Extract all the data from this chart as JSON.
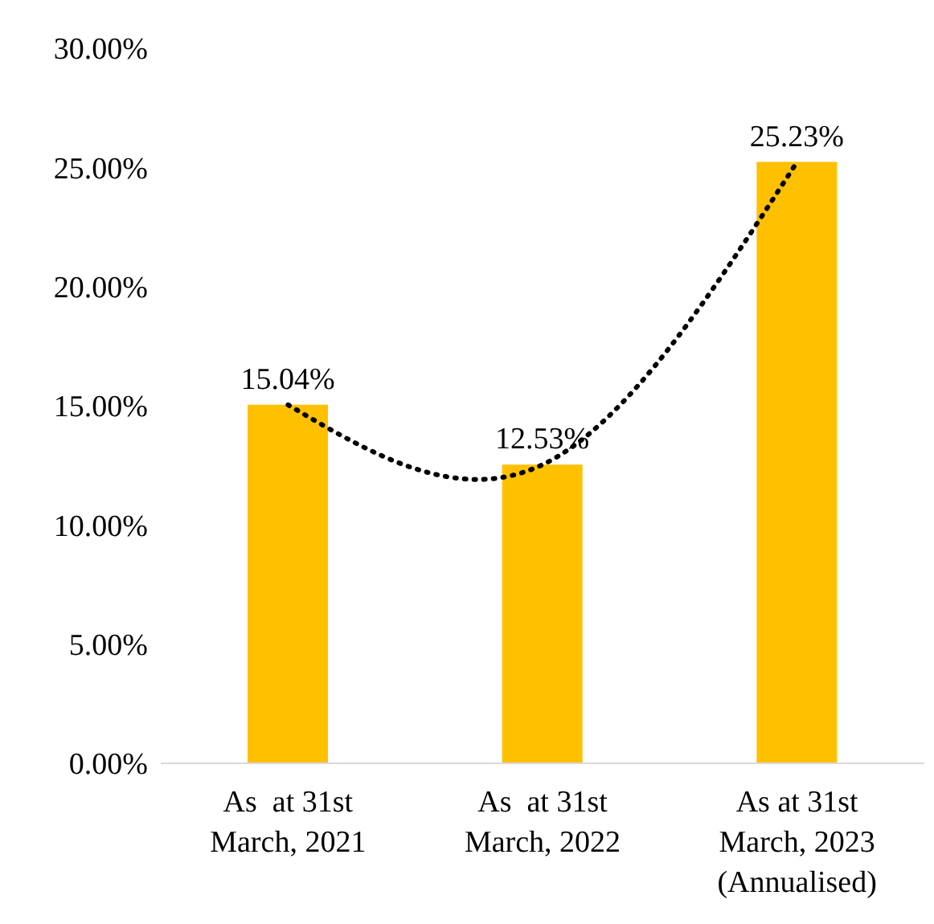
{
  "chart_data": {
    "type": "bar",
    "categories": [
      "As  at 31st\nMarch, 2021",
      "As  at 31st\nMarch, 2022",
      "As at 31st\nMarch, 2023\n(Annualised)"
    ],
    "series": [
      {
        "color": "#ffc000",
        "values": [
          15.04,
          12.53,
          25.23
        ],
        "value_labels": [
          "15.04%",
          "12.53%",
          "25.23%"
        ]
      },
      {
        "type": "line",
        "color": "#000000",
        "line_style": "dotted",
        "marker": "none",
        "values": [
          15.04,
          12.53,
          25.23
        ]
      }
    ],
    "ylim": [
      0,
      30
    ],
    "yticks": [
      {
        "value": 0,
        "label": "0.00%"
      },
      {
        "value": 5,
        "label": "5.00%"
      },
      {
        "value": 10,
        "label": "10.00%"
      },
      {
        "value": 15,
        "label": "15.00%"
      },
      {
        "value": 20,
        "label": "20.00%"
      },
      {
        "value": 25,
        "label": "25.00%"
      },
      {
        "value": 30,
        "label": "30.00%"
      }
    ],
    "grid": false,
    "legend": false
  }
}
